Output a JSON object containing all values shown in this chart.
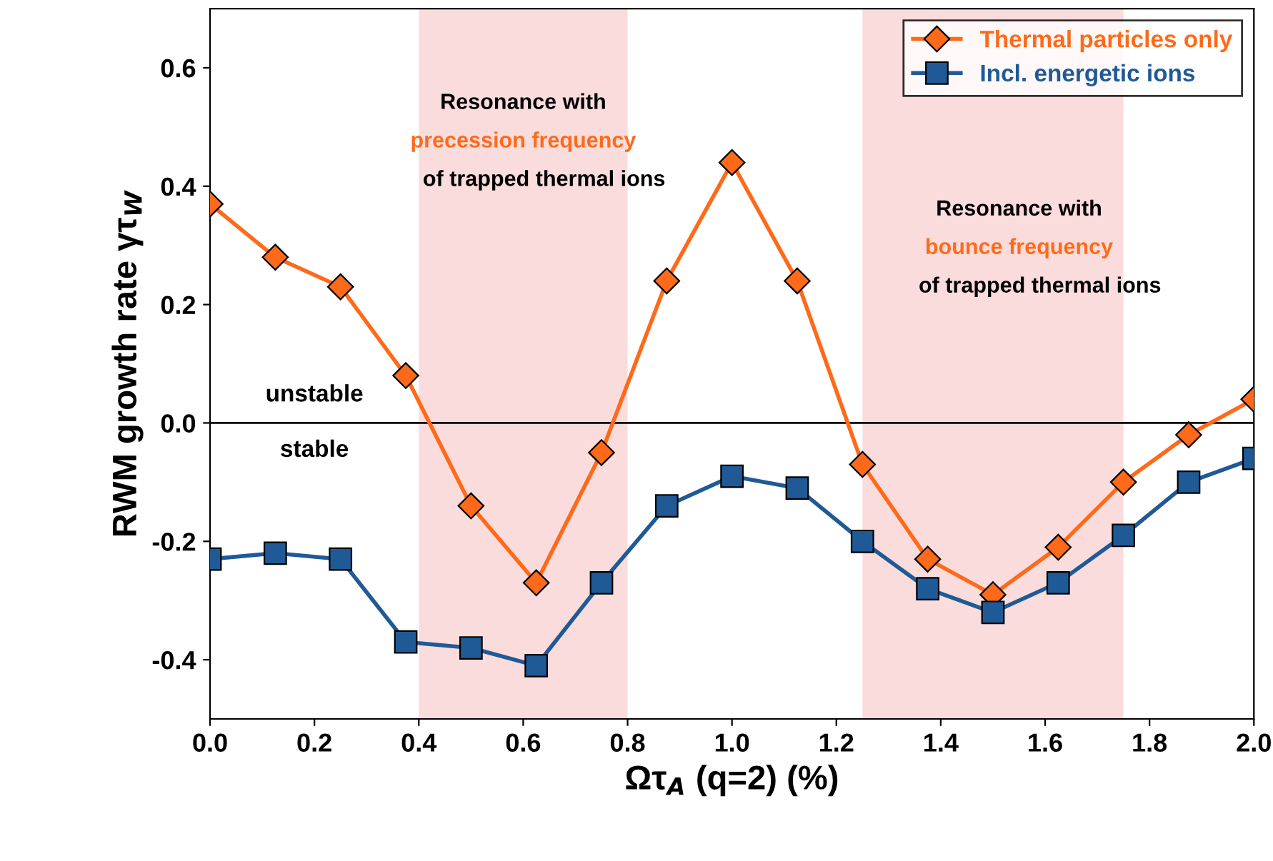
{
  "chart_data": {
    "type": "line",
    "xlabel": "Ωτ$_{A}$ (q=2) (%)",
    "ylabel": "RWM growth rate γτ$_{W}$",
    "x": [
      0,
      0.125,
      0.25,
      0.375,
      0.5,
      0.625,
      0.75,
      0.875,
      1.0,
      1.125,
      1.25,
      1.375,
      1.5,
      1.625,
      1.75,
      1.875,
      2.0
    ],
    "series": [
      {
        "name": "Thermal particles only",
        "color": "#ff6a1a",
        "marker": "diamond",
        "values": [
          0.37,
          0.28,
          0.23,
          0.08,
          -0.14,
          -0.27,
          -0.05,
          0.24,
          0.44,
          0.24,
          -0.07,
          -0.23,
          -0.29,
          -0.21,
          -0.1,
          -0.02,
          0.04
        ]
      },
      {
        "name": "Incl. energetic ions",
        "color": "#1f5a96",
        "marker": "square",
        "values": [
          -0.23,
          -0.22,
          -0.23,
          -0.37,
          -0.38,
          -0.41,
          -0.27,
          -0.14,
          -0.09,
          -0.11,
          -0.2,
          -0.28,
          -0.32,
          -0.27,
          -0.19,
          -0.1,
          -0.06
        ]
      }
    ],
    "xlim": [
      0,
      2.0
    ],
    "ylim": [
      -0.5,
      0.7
    ],
    "xticks": [
      {
        "value": 0,
        "label": "0.0"
      },
      0.2,
      0.4,
      0.6,
      0.8,
      {
        "value": 1,
        "label": "1.0"
      },
      1.2,
      1.4,
      1.6,
      1.8,
      {
        "value": 2,
        "label": "2.0"
      }
    ],
    "yticks": [
      {
        "value": -0.4,
        "label": "-0.4"
      },
      {
        "value": -0.2,
        "label": "-0.2"
      },
      {
        "value": 0,
        "label": "0.0"
      },
      0.2,
      0.4,
      0.6
    ],
    "ref_lines": [
      {
        "axis": "y",
        "value": 0,
        "color": "#000000"
      }
    ],
    "bands": [
      {
        "axis": "x",
        "from": 0.4,
        "to": 0.8,
        "color": "#fbdcdc",
        "label": "Resonance with\nprecession frequency\nof trapped thermal ions"
      },
      {
        "axis": "x",
        "from": 1.25,
        "to": 1.75,
        "color": "#fbdcdc",
        "label": "Resonance with\nbounce frequency\nof trapped thermal ions"
      }
    ],
    "annotations": [
      "unstable",
      "stable"
    ],
    "legend": "top right",
    "grid": false
  }
}
